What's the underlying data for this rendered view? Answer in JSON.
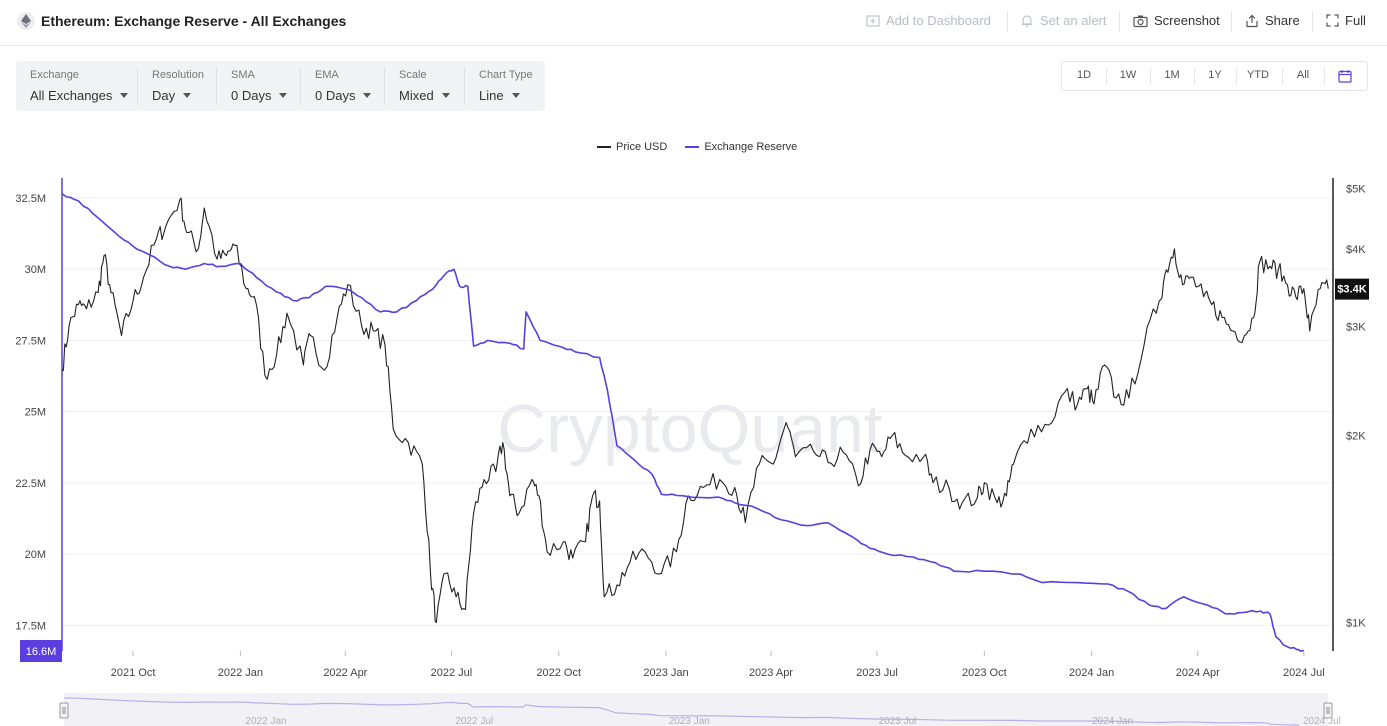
{
  "header": {
    "title": "Ethereum: Exchange Reserve - All Exchanges",
    "add_dashboard": "Add to Dashboard",
    "set_alert": "Set an alert",
    "screenshot": "Screenshot",
    "share": "Share",
    "full": "Full"
  },
  "filters": [
    {
      "label": "Exchange",
      "value": "All Exchanges"
    },
    {
      "label": "Resolution",
      "value": "Day"
    },
    {
      "label": "SMA",
      "value": "0 Days"
    },
    {
      "label": "EMA",
      "value": "0 Days"
    },
    {
      "label": "Scale",
      "value": "Mixed"
    },
    {
      "label": "Chart Type",
      "value": "Line"
    }
  ],
  "ranges": [
    "1D",
    "1W",
    "1M",
    "1Y",
    "YTD",
    "All"
  ],
  "watermark": "CryptoQuant",
  "colors": {
    "price": "#222222",
    "reserve": "#5b3ee0",
    "navigator": "#b9b0ea"
  },
  "chart_data": {
    "type": "line",
    "legend_position": "top-center",
    "x_ticks": [
      "2021 Oct",
      "2022 Jan",
      "2022 Apr",
      "2022 Jul",
      "2022 Oct",
      "2023 Jan",
      "2023 Apr",
      "2023 Jul",
      "2023 Oct",
      "2024 Jan",
      "2024 Apr",
      "2024 Jul"
    ],
    "navigator_ticks": [
      "2022 Jan",
      "2022 Jul",
      "2023 Jan",
      "2023 Jul",
      "2024 Jan",
      "2024 Jul"
    ],
    "left_axis": {
      "ticks": [
        "17.5M",
        "20M",
        "22.5M",
        "25M",
        "27.5M",
        "30M",
        "32.5M"
      ],
      "values": [
        17.5,
        20,
        22.5,
        25,
        27.5,
        30,
        32.5
      ],
      "range": [
        16.6,
        33.2
      ]
    },
    "right_axis": {
      "ticks": [
        "$1K",
        "$2K",
        "$3K",
        "$4K",
        "$5K"
      ],
      "values": [
        1000,
        2000,
        3000,
        4000,
        5000
      ],
      "scale": "log",
      "range": [
        900,
        5200
      ]
    },
    "current_reserve_label": "16.6M",
    "current_price_label": "$3.4K",
    "series": [
      {
        "name": "Price USD",
        "axis": "right",
        "points": [
          [
            "2021-08-01",
            2550
          ],
          [
            "2021-08-07",
            3000
          ],
          [
            "2021-08-15",
            3250
          ],
          [
            "2021-08-22",
            3200
          ],
          [
            "2021-09-01",
            3400
          ],
          [
            "2021-09-06",
            3900
          ],
          [
            "2021-09-12",
            3400
          ],
          [
            "2021-09-21",
            2900
          ],
          [
            "2021-10-01",
            3300
          ],
          [
            "2021-10-10",
            3600
          ],
          [
            "2021-10-21",
            4150
          ],
          [
            "2021-10-29",
            4350
          ],
          [
            "2021-11-10",
            4800
          ],
          [
            "2021-11-16",
            4250
          ],
          [
            "2021-11-26",
            4000
          ],
          [
            "2021-12-01",
            4650
          ],
          [
            "2021-12-12",
            3850
          ],
          [
            "2021-12-20",
            3900
          ],
          [
            "2021-12-27",
            4050
          ],
          [
            "2022-01-06",
            3450
          ],
          [
            "2022-01-13",
            3350
          ],
          [
            "2022-01-22",
            2500
          ],
          [
            "2022-02-01",
            2700
          ],
          [
            "2022-02-10",
            3150
          ],
          [
            "2022-02-24",
            2600
          ],
          [
            "2022-03-02",
            2900
          ],
          [
            "2022-03-14",
            2550
          ],
          [
            "2022-03-25",
            3100
          ],
          [
            "2022-04-03",
            3500
          ],
          [
            "2022-04-15",
            3000
          ],
          [
            "2022-04-25",
            2950
          ],
          [
            "2022-05-05",
            2800
          ],
          [
            "2022-05-12",
            2050
          ],
          [
            "2022-05-25",
            1950
          ],
          [
            "2022-06-06",
            1800
          ],
          [
            "2022-06-13",
            1200
          ],
          [
            "2022-06-18",
            1000
          ],
          [
            "2022-06-26",
            1200
          ],
          [
            "2022-07-05",
            1100
          ],
          [
            "2022-07-13",
            1050
          ],
          [
            "2022-07-20",
            1500
          ],
          [
            "2022-07-29",
            1700
          ],
          [
            "2022-08-08",
            1750
          ],
          [
            "2022-08-14",
            1950
          ],
          [
            "2022-08-20",
            1600
          ],
          [
            "2022-08-28",
            1500
          ],
          [
            "2022-09-08",
            1700
          ],
          [
            "2022-09-14",
            1600
          ],
          [
            "2022-09-21",
            1300
          ],
          [
            "2022-10-05",
            1350
          ],
          [
            "2022-10-13",
            1270
          ],
          [
            "2022-10-24",
            1350
          ],
          [
            "2022-10-30",
            1600
          ],
          [
            "2022-11-05",
            1570
          ],
          [
            "2022-11-09",
            1100
          ],
          [
            "2022-11-20",
            1150
          ],
          [
            "2022-12-01",
            1250
          ],
          [
            "2022-12-14",
            1300
          ],
          [
            "2022-12-28",
            1200
          ],
          [
            "2023-01-10",
            1300
          ],
          [
            "2023-01-20",
            1600
          ],
          [
            "2023-02-02",
            1650
          ],
          [
            "2023-02-16",
            1700
          ],
          [
            "2023-03-01",
            1650
          ],
          [
            "2023-03-10",
            1450
          ],
          [
            "2023-03-22",
            1800
          ],
          [
            "2023-04-03",
            1800
          ],
          [
            "2023-04-14",
            2100
          ],
          [
            "2023-04-22",
            1850
          ],
          [
            "2023-05-08",
            1880
          ],
          [
            "2023-05-20",
            1810
          ],
          [
            "2023-06-02",
            1880
          ],
          [
            "2023-06-15",
            1660
          ],
          [
            "2023-06-25",
            1900
          ],
          [
            "2023-07-05",
            1850
          ],
          [
            "2023-07-14",
            2000
          ],
          [
            "2023-07-25",
            1860
          ],
          [
            "2023-08-10",
            1850
          ],
          [
            "2023-08-18",
            1680
          ],
          [
            "2023-09-01",
            1640
          ],
          [
            "2023-09-12",
            1560
          ],
          [
            "2023-09-25",
            1590
          ],
          [
            "2023-10-01",
            1680
          ],
          [
            "2023-10-12",
            1560
          ],
          [
            "2023-10-20",
            1600
          ],
          [
            "2023-10-26",
            1800
          ],
          [
            "2023-11-10",
            2050
          ],
          [
            "2023-11-25",
            2080
          ],
          [
            "2023-12-09",
            2350
          ],
          [
            "2023-12-20",
            2250
          ],
          [
            "2023-12-28",
            2380
          ],
          [
            "2024-01-03",
            2250
          ],
          [
            "2024-01-12",
            2600
          ],
          [
            "2024-01-22",
            2300
          ],
          [
            "2024-02-02",
            2300
          ],
          [
            "2024-02-15",
            2800
          ],
          [
            "2024-02-28",
            3300
          ],
          [
            "2024-03-05",
            3700
          ],
          [
            "2024-03-12",
            4000
          ],
          [
            "2024-03-19",
            3500
          ],
          [
            "2024-03-26",
            3600
          ],
          [
            "2024-04-06",
            3350
          ],
          [
            "2024-04-13",
            3250
          ],
          [
            "2024-04-22",
            3100
          ],
          [
            "2024-05-01",
            2950
          ],
          [
            "2024-05-11",
            2900
          ],
          [
            "2024-05-19",
            3100
          ],
          [
            "2024-05-24",
            3800
          ],
          [
            "2024-06-02",
            3750
          ],
          [
            "2024-06-09",
            3700
          ],
          [
            "2024-06-17",
            3500
          ],
          [
            "2024-06-24",
            3350
          ],
          [
            "2024-07-01",
            3450
          ],
          [
            "2024-07-06",
            2950
          ],
          [
            "2024-07-15",
            3450
          ],
          [
            "2024-07-22",
            3450
          ]
        ]
      },
      {
        "name": "Exchange Reserve",
        "axis": "left",
        "points": [
          [
            "2021-08-01",
            32.65
          ],
          [
            "2021-08-15",
            32.4
          ],
          [
            "2021-09-01",
            31.8
          ],
          [
            "2021-09-15",
            31.3
          ],
          [
            "2021-10-01",
            30.8
          ],
          [
            "2021-10-15",
            30.5
          ],
          [
            "2021-11-01",
            30.1
          ],
          [
            "2021-11-15",
            30.0
          ],
          [
            "2021-12-01",
            30.2
          ],
          [
            "2021-12-15",
            30.1
          ],
          [
            "2022-01-01",
            30.2
          ],
          [
            "2022-01-15",
            29.7
          ],
          [
            "2022-02-01",
            29.2
          ],
          [
            "2022-02-15",
            28.9
          ],
          [
            "2022-03-01",
            29.0
          ],
          [
            "2022-03-15",
            29.4
          ],
          [
            "2022-04-01",
            29.3
          ],
          [
            "2022-04-15",
            29.0
          ],
          [
            "2022-05-01",
            28.5
          ],
          [
            "2022-05-15",
            28.5
          ],
          [
            "2022-06-01",
            28.9
          ],
          [
            "2022-06-15",
            29.3
          ],
          [
            "2022-06-25",
            29.8
          ],
          [
            "2022-07-03",
            30.0
          ],
          [
            "2022-07-08",
            29.4
          ],
          [
            "2022-07-15",
            29.4
          ],
          [
            "2022-07-20",
            27.3
          ],
          [
            "2022-08-01",
            27.5
          ],
          [
            "2022-08-20",
            27.4
          ],
          [
            "2022-09-01",
            27.2
          ],
          [
            "2022-09-03",
            28.5
          ],
          [
            "2022-09-15",
            27.5
          ],
          [
            "2022-10-01",
            27.3
          ],
          [
            "2022-10-15",
            27.1
          ],
          [
            "2022-11-05",
            26.9
          ],
          [
            "2022-11-12",
            25.7
          ],
          [
            "2022-11-20",
            23.8
          ],
          [
            "2022-12-05",
            23.3
          ],
          [
            "2022-12-20",
            22.8
          ],
          [
            "2022-12-28",
            22.1
          ],
          [
            "2023-01-15",
            22.05
          ],
          [
            "2023-02-15",
            22.0
          ],
          [
            "2023-03-01",
            21.8
          ],
          [
            "2023-03-20",
            21.6
          ],
          [
            "2023-04-10",
            21.2
          ],
          [
            "2023-05-01",
            21.0
          ],
          [
            "2023-05-20",
            21.1
          ],
          [
            "2023-06-10",
            20.6
          ],
          [
            "2023-06-25",
            20.2
          ],
          [
            "2023-07-10",
            20.0
          ],
          [
            "2023-08-01",
            19.9
          ],
          [
            "2023-08-20",
            19.7
          ],
          [
            "2023-09-05",
            19.4
          ],
          [
            "2023-10-01",
            19.4
          ],
          [
            "2023-11-01",
            19.3
          ],
          [
            "2023-11-20",
            19.0
          ],
          [
            "2023-12-20",
            19.0
          ],
          [
            "2024-01-15",
            18.95
          ],
          [
            "2024-02-01",
            18.7
          ],
          [
            "2024-02-20",
            18.2
          ],
          [
            "2024-03-05",
            18.1
          ],
          [
            "2024-03-20",
            18.5
          ],
          [
            "2024-04-10",
            18.2
          ],
          [
            "2024-04-25",
            17.9
          ],
          [
            "2024-05-10",
            17.95
          ],
          [
            "2024-05-25",
            18.0
          ],
          [
            "2024-06-02",
            17.9
          ],
          [
            "2024-06-07",
            17.1
          ],
          [
            "2024-06-14",
            16.8
          ],
          [
            "2024-06-25",
            16.65
          ],
          [
            "2024-07-01",
            16.6
          ]
        ]
      }
    ]
  }
}
